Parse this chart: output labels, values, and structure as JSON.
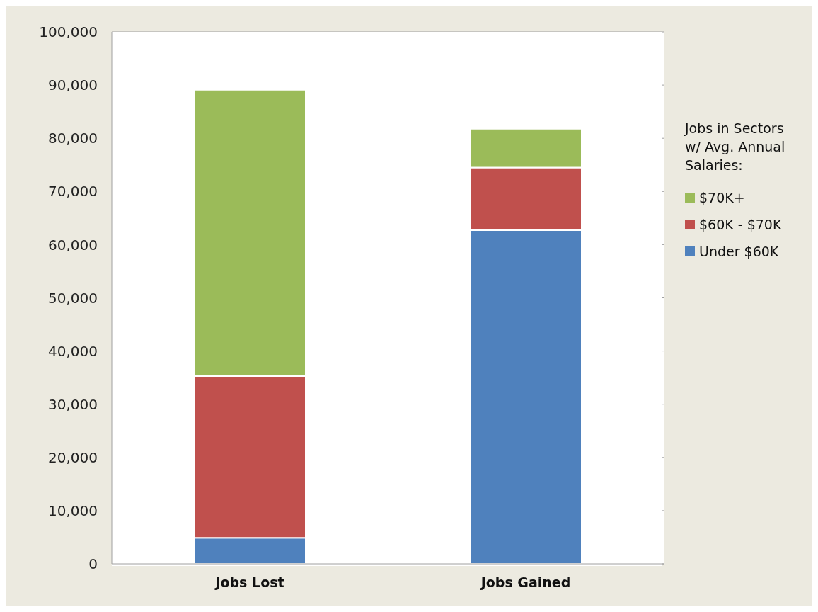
{
  "chart_data": {
    "type": "bar",
    "stacked": true,
    "categories": [
      "Jobs Lost",
      "Jobs Gained"
    ],
    "series": [
      {
        "name": "Under $60K",
        "color": "#4f81bd",
        "values": [
          4900,
          62700
        ]
      },
      {
        "name": "$60K - $70K",
        "color": "#c0504d",
        "values": [
          30400,
          11800
        ]
      },
      {
        "name": "$70K+",
        "color": "#9bbb59",
        "values": [
          53800,
          7300
        ]
      }
    ],
    "legend_title": "Jobs in Sectors w/ Avg. Annual Salaries:",
    "legend": "right",
    "ylim": [
      0,
      100000
    ],
    "yticks": [
      0,
      {
        "value": 10000,
        "label": "10,000"
      },
      {
        "value": 20000,
        "label": "20,000"
      },
      {
        "value": 30000,
        "label": "30,000"
      },
      {
        "value": 40000,
        "label": "40,000"
      },
      {
        "value": 50000,
        "label": "50,000"
      },
      {
        "value": 60000,
        "label": "60,000"
      },
      {
        "value": 70000,
        "label": "70,000"
      },
      {
        "value": 80000,
        "label": "80,000"
      },
      {
        "value": 90000,
        "label": "90,000"
      },
      {
        "value": 100000,
        "label": "100,000"
      }
    ],
    "grid": "y"
  }
}
